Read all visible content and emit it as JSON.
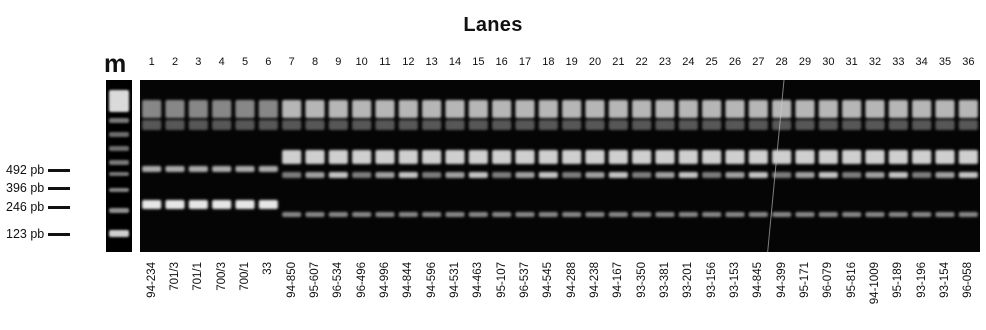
{
  "figure": {
    "title": "Lanes",
    "marker_lane_label": "m",
    "lane_numbers": [
      "1",
      "2",
      "3",
      "4",
      "5",
      "6",
      "7",
      "8",
      "9",
      "10",
      "11",
      "12",
      "13",
      "14",
      "15",
      "16",
      "17",
      "18",
      "19",
      "20",
      "21",
      "22",
      "23",
      "24",
      "25",
      "26",
      "27",
      "28",
      "29",
      "30",
      "31",
      "32",
      "33",
      "34",
      "35",
      "36"
    ],
    "size_markers": [
      {
        "label": "492 pb",
        "bp": 492
      },
      {
        "label": "396 pb",
        "bp": 396
      },
      {
        "label": "246 pb",
        "bp": 246
      },
      {
        "label": "123 pb",
        "bp": 123
      }
    ],
    "sample_labels": [
      "94-234",
      "701/3",
      "701/1",
      "700/3",
      "700/1",
      "33",
      "94-850",
      "95-607",
      "96-534",
      "96-496",
      "94-996",
      "94-844",
      "94-596",
      "94-531",
      "94-463",
      "95-107",
      "96-537",
      "94-545",
      "94-288",
      "94-238",
      "94-167",
      "93-350",
      "93-381",
      "93-201",
      "93-156",
      "93-153",
      "94-845",
      "94-399",
      "95-171",
      "96-079",
      "95-816",
      "94-1009",
      "95-189",
      "93-196",
      "93-154",
      "96-058"
    ]
  },
  "colors": {
    "background": "#ffffff",
    "gel": "#050505",
    "band": "#f2f2f2",
    "text": "#111111"
  }
}
